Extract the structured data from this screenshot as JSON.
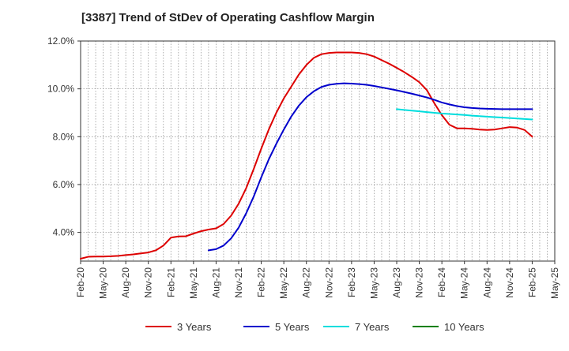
{
  "chart_data": {
    "type": "line",
    "title": "[3387]  Trend of StDev of Operating Cashflow Margin",
    "xlabel": "",
    "ylabel": "",
    "x_tick_labels": [
      "Feb-20",
      "May-20",
      "Aug-20",
      "Nov-20",
      "Feb-21",
      "May-21",
      "Aug-21",
      "Nov-21",
      "Feb-22",
      "May-22",
      "Aug-22",
      "Nov-22",
      "Feb-23",
      "May-23",
      "Aug-23",
      "Nov-23",
      "Feb-24",
      "May-24",
      "Aug-24",
      "Nov-24",
      "Feb-25",
      "May-25"
    ],
    "y_tick_labels": [
      "4.0%",
      "6.0%",
      "8.0%",
      "10.0%",
      "12.0%"
    ],
    "y_ticks": [
      4,
      6,
      8,
      10,
      12
    ],
    "ylim": [
      2.8,
      12.0
    ],
    "x_range": [
      "2020-02",
      "2025-05"
    ],
    "grid": true,
    "legend_position": "bottom",
    "series": [
      {
        "name": "3 Years",
        "color": "#dd0000",
        "points": [
          [
            "2020-02",
            2.9
          ],
          [
            "2020-03",
            2.98
          ],
          [
            "2020-04",
            2.99
          ],
          [
            "2020-05",
            2.99
          ],
          [
            "2020-06",
            3.0
          ],
          [
            "2020-07",
            3.02
          ],
          [
            "2020-08",
            3.05
          ],
          [
            "2020-09",
            3.08
          ],
          [
            "2020-10",
            3.12
          ],
          [
            "2020-11",
            3.16
          ],
          [
            "2020-12",
            3.25
          ],
          [
            "2021-01",
            3.45
          ],
          [
            "2021-02",
            3.78
          ],
          [
            "2021-03",
            3.83
          ],
          [
            "2021-04",
            3.84
          ],
          [
            "2021-05",
            3.95
          ],
          [
            "2021-06",
            4.05
          ],
          [
            "2021-07",
            4.12
          ],
          [
            "2021-08",
            4.17
          ],
          [
            "2021-09",
            4.35
          ],
          [
            "2021-10",
            4.7
          ],
          [
            "2021-11",
            5.2
          ],
          [
            "2021-12",
            5.85
          ],
          [
            "2022-01",
            6.65
          ],
          [
            "2022-02",
            7.5
          ],
          [
            "2022-03",
            8.3
          ],
          [
            "2022-04",
            9.0
          ],
          [
            "2022-05",
            9.6
          ],
          [
            "2022-06",
            10.1
          ],
          [
            "2022-07",
            10.6
          ],
          [
            "2022-08",
            11.0
          ],
          [
            "2022-09",
            11.3
          ],
          [
            "2022-10",
            11.45
          ],
          [
            "2022-11",
            11.5
          ],
          [
            "2022-12",
            11.52
          ],
          [
            "2023-01",
            11.52
          ],
          [
            "2023-02",
            11.52
          ],
          [
            "2023-03",
            11.5
          ],
          [
            "2023-04",
            11.45
          ],
          [
            "2023-05",
            11.35
          ],
          [
            "2023-06",
            11.2
          ],
          [
            "2023-07",
            11.05
          ],
          [
            "2023-08",
            10.88
          ],
          [
            "2023-09",
            10.7
          ],
          [
            "2023-10",
            10.5
          ],
          [
            "2023-11",
            10.28
          ],
          [
            "2023-12",
            9.95
          ],
          [
            "2024-01",
            9.4
          ],
          [
            "2024-02",
            8.9
          ],
          [
            "2024-03",
            8.5
          ],
          [
            "2024-04",
            8.35
          ],
          [
            "2024-05",
            8.35
          ],
          [
            "2024-06",
            8.33
          ],
          [
            "2024-07",
            8.3
          ],
          [
            "2024-08",
            8.28
          ],
          [
            "2024-09",
            8.3
          ],
          [
            "2024-10",
            8.35
          ],
          [
            "2024-11",
            8.4
          ],
          [
            "2024-12",
            8.38
          ],
          [
            "2025-01",
            8.28
          ],
          [
            "2025-02",
            8.0
          ]
        ]
      },
      {
        "name": "5 Years",
        "color": "#0000cc",
        "points": [
          [
            "2021-07",
            3.25
          ],
          [
            "2021-08",
            3.3
          ],
          [
            "2021-09",
            3.45
          ],
          [
            "2021-10",
            3.75
          ],
          [
            "2021-11",
            4.2
          ],
          [
            "2021-12",
            4.8
          ],
          [
            "2022-01",
            5.5
          ],
          [
            "2022-02",
            6.3
          ],
          [
            "2022-03",
            7.05
          ],
          [
            "2022-04",
            7.7
          ],
          [
            "2022-05",
            8.3
          ],
          [
            "2022-06",
            8.85
          ],
          [
            "2022-07",
            9.3
          ],
          [
            "2022-08",
            9.65
          ],
          [
            "2022-09",
            9.9
          ],
          [
            "2022-10",
            10.08
          ],
          [
            "2022-11",
            10.17
          ],
          [
            "2022-12",
            10.21
          ],
          [
            "2023-01",
            10.23
          ],
          [
            "2023-02",
            10.22
          ],
          [
            "2023-03",
            10.2
          ],
          [
            "2023-04",
            10.17
          ],
          [
            "2023-05",
            10.12
          ],
          [
            "2023-06",
            10.06
          ],
          [
            "2023-07",
            10.0
          ],
          [
            "2023-08",
            9.94
          ],
          [
            "2023-09",
            9.87
          ],
          [
            "2023-10",
            9.8
          ],
          [
            "2023-11",
            9.72
          ],
          [
            "2023-12",
            9.64
          ],
          [
            "2024-01",
            9.54
          ],
          [
            "2024-02",
            9.43
          ],
          [
            "2024-03",
            9.35
          ],
          [
            "2024-04",
            9.28
          ],
          [
            "2024-05",
            9.23
          ],
          [
            "2024-06",
            9.2
          ],
          [
            "2024-07",
            9.18
          ],
          [
            "2024-08",
            9.17
          ],
          [
            "2024-09",
            9.16
          ],
          [
            "2024-10",
            9.15
          ],
          [
            "2024-11",
            9.15
          ],
          [
            "2024-12",
            9.15
          ],
          [
            "2025-01",
            9.15
          ],
          [
            "2025-02",
            9.15
          ]
        ]
      },
      {
        "name": "7 Years",
        "color": "#00dddd",
        "points": [
          [
            "2023-08",
            9.15
          ],
          [
            "2023-09",
            9.12
          ],
          [
            "2023-10",
            9.09
          ],
          [
            "2023-11",
            9.06
          ],
          [
            "2023-12",
            9.03
          ],
          [
            "2024-01",
            9.0
          ],
          [
            "2024-02",
            8.97
          ],
          [
            "2024-03",
            8.95
          ],
          [
            "2024-04",
            8.93
          ],
          [
            "2024-05",
            8.91
          ],
          [
            "2024-06",
            8.88
          ],
          [
            "2024-07",
            8.86
          ],
          [
            "2024-08",
            8.84
          ],
          [
            "2024-09",
            8.82
          ],
          [
            "2024-10",
            8.8
          ],
          [
            "2024-11",
            8.78
          ],
          [
            "2024-12",
            8.76
          ],
          [
            "2025-01",
            8.74
          ],
          [
            "2025-02",
            8.72
          ]
        ]
      },
      {
        "name": "10 Years",
        "color": "#008000",
        "points": []
      }
    ]
  }
}
